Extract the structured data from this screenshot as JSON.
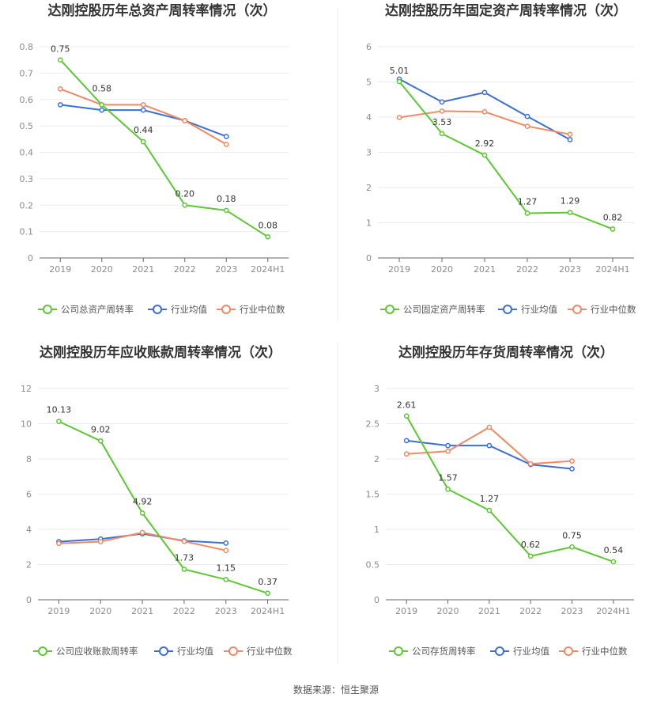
{
  "source": "数据来源：恒生聚源",
  "colors": {
    "company": "#5cc832",
    "avg": "#3b6fd8",
    "median": "#f08a62",
    "grid": "#e8ebf0",
    "axis": "#666666"
  },
  "chart_data": [
    {
      "type": "line",
      "title": "达刚控股历年总资产周转率情况（次）",
      "categories": [
        "2019",
        "2020",
        "2021",
        "2022",
        "2023",
        "2024H1"
      ],
      "yticks": [
        "0",
        "0.1",
        "0.2",
        "0.3",
        "0.4",
        "0.5",
        "0.6",
        "0.7",
        "0.8"
      ],
      "ylim": [
        0,
        0.8
      ],
      "series": [
        {
          "name": "公司总资产周转率",
          "key": "company",
          "values": [
            0.75,
            0.58,
            0.44,
            0.2,
            0.18,
            0.08
          ],
          "labels": [
            "0.75",
            "0.58",
            "0.44",
            "0.20",
            "0.18",
            "0.08"
          ]
        },
        {
          "name": "行业均值",
          "key": "avg",
          "values": [
            0.58,
            0.56,
            0.56,
            0.52,
            0.46,
            null
          ]
        },
        {
          "name": "行业中位数",
          "key": "median",
          "values": [
            0.64,
            0.58,
            0.58,
            0.52,
            0.43,
            null
          ]
        }
      ],
      "legend": "bottom"
    },
    {
      "type": "line",
      "title": "达刚控股历年固定资产周转率情况（次）",
      "categories": [
        "2019",
        "2020",
        "2021",
        "2022",
        "2023",
        "2024H1"
      ],
      "yticks": [
        "0",
        "1",
        "2",
        "3",
        "4",
        "5",
        "6"
      ],
      "ylim": [
        0,
        6
      ],
      "series": [
        {
          "name": "公司固定资产周转率",
          "key": "company",
          "values": [
            5.01,
            3.53,
            2.92,
            1.27,
            1.29,
            0.82
          ],
          "labels": [
            "5.01",
            "3.53",
            "2.92",
            "1.27",
            "1.29",
            "0.82"
          ]
        },
        {
          "name": "行业均值",
          "key": "avg",
          "values": [
            5.08,
            4.43,
            4.7,
            4.02,
            3.36,
            null
          ]
        },
        {
          "name": "行业中位数",
          "key": "median",
          "values": [
            3.99,
            4.17,
            4.15,
            3.74,
            3.51,
            null
          ]
        }
      ],
      "legend": "bottom"
    },
    {
      "type": "line",
      "title": "达刚控股历年应收账款周转率情况（次）",
      "categories": [
        "2019",
        "2020",
        "2021",
        "2022",
        "2023",
        "2024H1"
      ],
      "yticks": [
        "0",
        "2",
        "4",
        "6",
        "8",
        "10",
        "12"
      ],
      "ylim": [
        0,
        12
      ],
      "series": [
        {
          "name": "公司应收账款周转率",
          "key": "company",
          "values": [
            10.13,
            9.02,
            4.92,
            1.73,
            1.15,
            0.37
          ],
          "labels": [
            "10.13",
            "9.02",
            "4.92",
            "1.73",
            "1.15",
            "0.37"
          ]
        },
        {
          "name": "行业均值",
          "key": "avg",
          "values": [
            3.3,
            3.45,
            3.75,
            3.35,
            3.22,
            null
          ]
        },
        {
          "name": "行业中位数",
          "key": "median",
          "values": [
            3.2,
            3.3,
            3.82,
            3.32,
            2.8,
            null
          ]
        }
      ],
      "legend": "bottom"
    },
    {
      "type": "line",
      "title": "达刚控股历年存货周转率情况（次）",
      "categories": [
        "2019",
        "2020",
        "2021",
        "2022",
        "2023",
        "2024H1"
      ],
      "yticks": [
        "0",
        "0.5",
        "1",
        "1.5",
        "2",
        "2.5",
        "3"
      ],
      "ylim": [
        0,
        3
      ],
      "series": [
        {
          "name": "公司存货周转率",
          "key": "company",
          "values": [
            2.61,
            1.57,
            1.27,
            0.62,
            0.75,
            0.54
          ],
          "labels": [
            "2.61",
            "1.57",
            "1.27",
            "0.62",
            "0.75",
            "0.54"
          ]
        },
        {
          "name": "行业均值",
          "key": "avg",
          "values": [
            2.26,
            2.19,
            2.19,
            1.92,
            1.86,
            null
          ]
        },
        {
          "name": "行业中位数",
          "key": "median",
          "values": [
            2.07,
            2.11,
            2.45,
            1.93,
            1.97,
            null
          ]
        }
      ],
      "legend": "bottom"
    }
  ]
}
